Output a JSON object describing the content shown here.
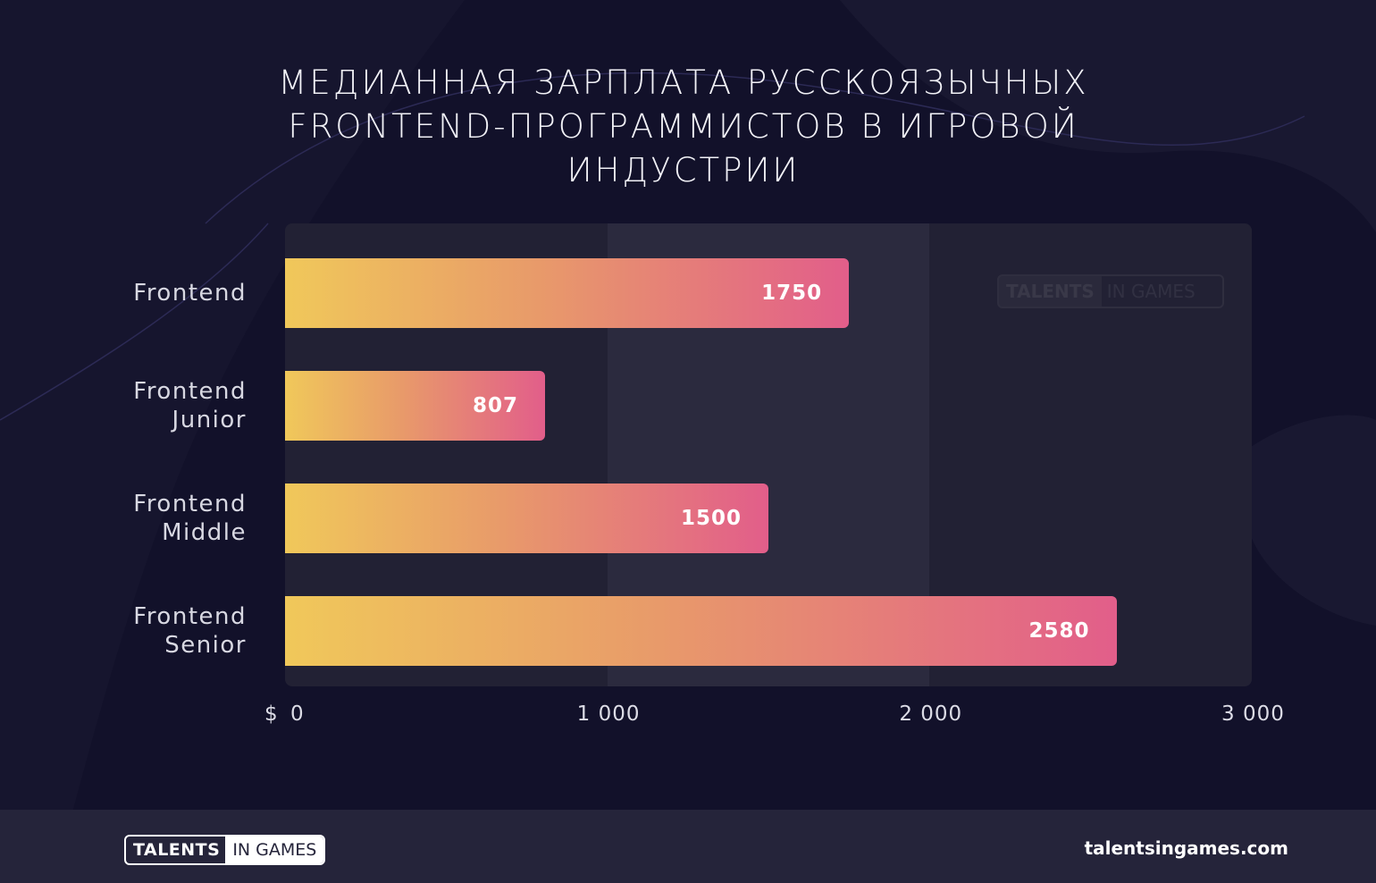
{
  "colors": {
    "background": "#12112a",
    "plot_background": "#222134",
    "plot_band": "#2b2a3e",
    "bar_gradient_start": "#f0c85a",
    "bar_gradient_end": "#e25e8a",
    "footer": "#25243a"
  },
  "title_lines": [
    "МЕДИАННАЯ ЗАРПЛАТА РУССКОЯЗЫЧНЫХ",
    "FRONTEND-ПРОГРАММИСТОВ В ИГРОВОЙ",
    "ИНДУСТРИИ"
  ],
  "chart_data": {
    "type": "bar",
    "orientation": "horizontal",
    "title": "МЕДИАННАЯ ЗАРПЛАТА РУССКОЯЗЫЧНЫХ FRONTEND-ПРОГРАММИСТОВ В ИГРОВОЙ ИНДУСТРИИ",
    "categories": [
      "Frontend",
      "Frontend\nJunior",
      "Frontend\nMiddle",
      "Frontend\nSenior"
    ],
    "values": [
      1750,
      807,
      1500,
      2580
    ],
    "value_labels": [
      "1750",
      "807",
      "1500",
      "2580"
    ],
    "xlim": [
      0,
      3000
    ],
    "x_ticks": [
      0,
      1000,
      2000,
      3000
    ],
    "x_tick_labels": [
      "0",
      "1 000",
      "2 000",
      "3 000"
    ],
    "x_unit": "$",
    "grid": "alternating vertical bands",
    "legend": "none"
  },
  "watermark": {
    "part_a": "TALENTS",
    "part_b": "IN GAMES"
  },
  "footer": {
    "logo_a": "TALENTS",
    "logo_b": "IN GAMES",
    "website": "talentsingames.com"
  }
}
